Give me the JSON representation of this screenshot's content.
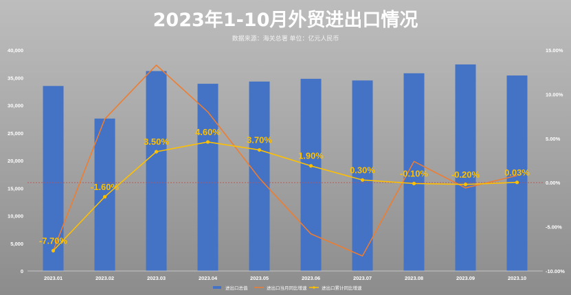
{
  "chart_data": {
    "type": "bar+line",
    "title": "2023年1-10月外贸进出口情况",
    "subtitle": "数据来源：海关总署      单位：亿元人民币",
    "categories": [
      "2023.01",
      "2023.02",
      "2023.03",
      "2023.04",
      "2023.05",
      "2023.06",
      "2023.07",
      "2023.08",
      "2023.09",
      "2023.10"
    ],
    "bar_series": {
      "name": "进出口总值",
      "color": "#4472c4",
      "values": [
        33500,
        27600,
        36200,
        33900,
        34300,
        34800,
        34500,
        35800,
        37400,
        35400
      ]
    },
    "line_series": [
      {
        "name": "进出口当月同比增速",
        "color": "#ed7d31",
        "values": [
          -7.7,
          7.2,
          13.3,
          8.0,
          0.5,
          -5.8,
          -8.3,
          2.4,
          -0.6,
          0.8
        ],
        "show_labels": false
      },
      {
        "name": "进出口累计同比增速",
        "color": "#ffc000",
        "values": [
          -7.7,
          -1.6,
          3.5,
          4.6,
          3.7,
          1.9,
          0.3,
          -0.1,
          -0.2,
          0.03
        ],
        "labels": [
          "-7.70%",
          "-1.60%",
          "3.50%",
          "4.60%",
          "3.70%",
          "1.90%",
          "0.30%",
          "-0.10%",
          "-0.20%",
          "0.03%"
        ],
        "show_labels": true
      }
    ],
    "y_left": {
      "ylim": [
        0,
        40000
      ],
      "ticks": [
        "0",
        "5,000",
        "10,000",
        "15,000",
        "20,000",
        "25,000",
        "30,000",
        "35,000",
        "40,000"
      ]
    },
    "y_right": {
      "ylim": [
        -10,
        15
      ],
      "ticks": [
        "-10.00%",
        "-5.00%",
        "0.00%",
        "5.00%",
        "10.00%",
        "15.00%"
      ]
    },
    "zero_line_color": "#c0504d",
    "grid": false,
    "legend_position": "bottom"
  }
}
